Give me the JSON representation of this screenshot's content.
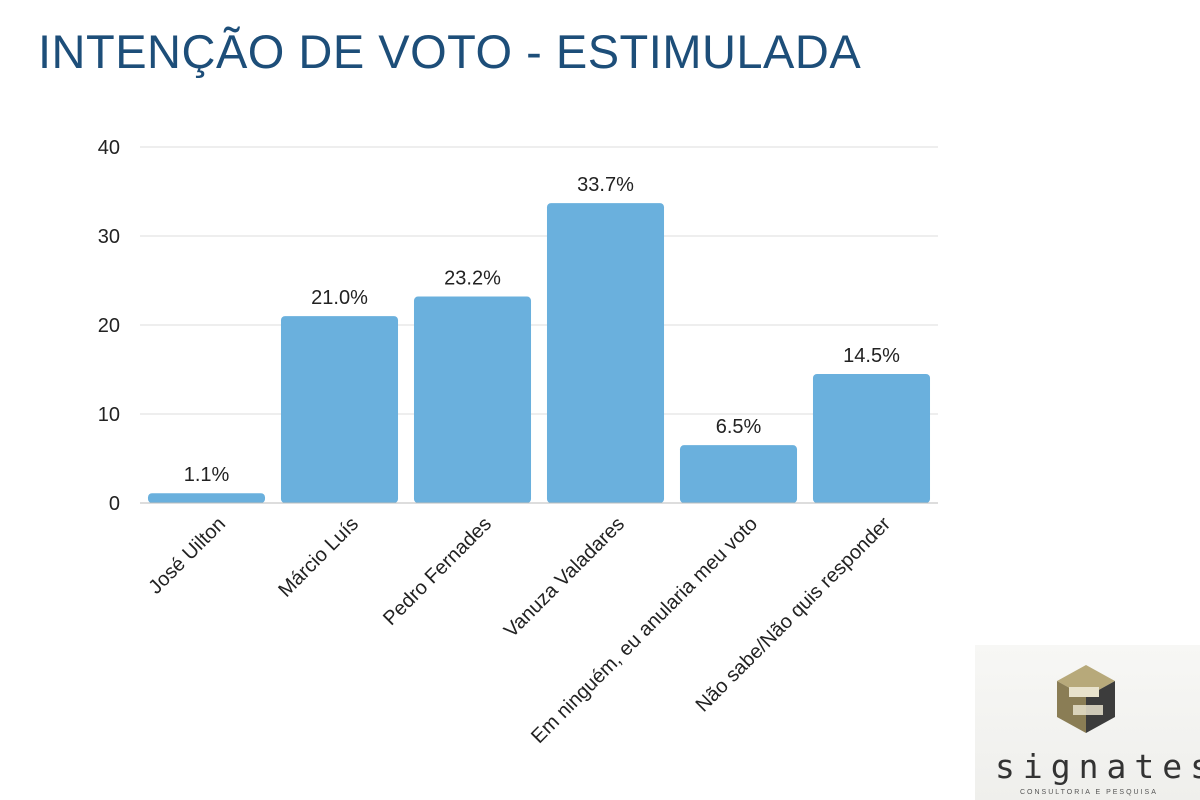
{
  "page": {
    "title": "INTENÇÃO DE VOTO - ESTIMULADA"
  },
  "chart_data": {
    "type": "bar",
    "title": "",
    "xlabel": "",
    "ylabel": "",
    "categories": [
      "José Uilton",
      "Márcio Luís",
      "Pedro Fernades",
      "Vanuza Valadares",
      "Em ninguém, eu anularia meu voto",
      "Não sabe/Não quis responder"
    ],
    "values": [
      1.1,
      21.0,
      23.2,
      33.7,
      6.5,
      14.5
    ],
    "data_labels": [
      "1.1%",
      "21.0%",
      "23.2%",
      "33.7%",
      "6.5%",
      "14.5%"
    ],
    "ylim": [
      0,
      40
    ],
    "yticks": [
      0,
      10,
      20,
      30,
      40
    ],
    "grid": true,
    "legend": "none",
    "bar_color": "#6ab0dd",
    "grid_color": "#dddddd",
    "text_color": "#222222"
  },
  "logo": {
    "name": "signates",
    "tagline": "CONSULTORIA E PESQUISA"
  }
}
